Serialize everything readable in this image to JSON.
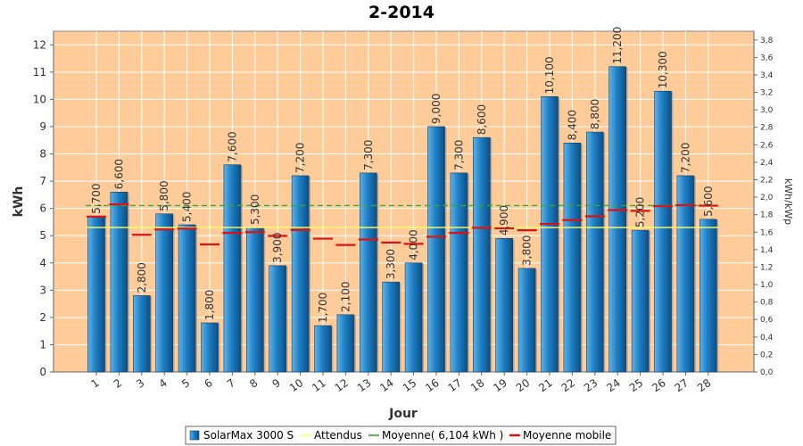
{
  "chart_data": {
    "type": "bar",
    "title": "2-2014",
    "xlabel": "Jour",
    "ylabel": "kWh",
    "ylabel_right": "kWh/kWp",
    "categories": [
      "1",
      "2",
      "3",
      "4",
      "5",
      "6",
      "7",
      "8",
      "9",
      "10",
      "11",
      "12",
      "13",
      "14",
      "15",
      "16",
      "17",
      "18",
      "19",
      "20",
      "21",
      "22",
      "23",
      "24",
      "25",
      "26",
      "27",
      "28"
    ],
    "series": [
      {
        "name": "SolarMax 3000 S",
        "kind": "bar",
        "color": "#1f7fc4",
        "values": [
          5.7,
          6.6,
          2.8,
          5.8,
          5.4,
          1.8,
          7.6,
          5.3,
          3.9,
          7.2,
          1.7,
          2.1,
          7.3,
          3.3,
          4.0,
          9.0,
          7.3,
          8.6,
          4.9,
          3.8,
          10.1,
          8.4,
          8.8,
          11.2,
          5.2,
          10.3,
          7.2,
          5.6
        ],
        "labels": [
          "5,700",
          "6,600",
          "2,800",
          "5,800",
          "5,400",
          "1,800",
          "7,600",
          "5,300",
          "3,900",
          "7,200",
          "1,700",
          "2,100",
          "7,300",
          "3,300",
          "4,000",
          "9,000",
          "7,300",
          "8,600",
          "4,900",
          "3,800",
          "10,100",
          "8,400",
          "8,800",
          "11,200",
          "5,200",
          "10,300",
          "7,200",
          "5,600"
        ]
      },
      {
        "name": "Attendus",
        "kind": "line",
        "color": "#ffff66",
        "values": [
          5.3,
          5.3,
          5.3,
          5.3,
          5.3,
          5.3,
          5.3,
          5.3,
          5.3,
          5.3,
          5.3,
          5.3,
          5.3,
          5.3,
          5.3,
          5.3,
          5.3,
          5.3,
          5.3,
          5.3,
          5.3,
          5.3,
          5.3,
          5.3,
          5.3,
          5.3,
          5.3,
          5.3
        ]
      },
      {
        "name": "Moyenne( 6,104 kWh )",
        "kind": "dashed-line",
        "color": "#33aa33",
        "values": [
          6.104,
          6.104,
          6.104,
          6.104,
          6.104,
          6.104,
          6.104,
          6.104,
          6.104,
          6.104,
          6.104,
          6.104,
          6.104,
          6.104,
          6.104,
          6.104,
          6.104,
          6.104,
          6.104,
          6.104,
          6.104,
          6.104,
          6.104,
          6.104,
          6.104,
          6.104,
          6.104,
          6.104
        ]
      },
      {
        "name": "Moyenne mobile",
        "kind": "step",
        "color": "#dd1111",
        "values": [
          5.7,
          6.15,
          5.03,
          5.23,
          5.26,
          4.68,
          5.1,
          5.13,
          4.99,
          5.21,
          4.89,
          4.66,
          4.86,
          4.75,
          4.7,
          4.96,
          5.1,
          5.29,
          5.27,
          5.2,
          5.43,
          5.57,
          5.71,
          5.94,
          5.91,
          6.08,
          6.12,
          6.1
        ]
      }
    ],
    "ylim": [
      0,
      12.5
    ],
    "yticks": [
      0,
      1,
      2,
      3,
      4,
      5,
      6,
      7,
      8,
      9,
      10,
      11,
      12
    ],
    "yticks_right": [
      "0,0",
      "0,2",
      "0,4",
      "0,6",
      "0,8",
      "1,0",
      "1,2",
      "1,4",
      "1,6",
      "1,8",
      "2,0",
      "2,2",
      "2,4",
      "2,6",
      "2,8",
      "3,0",
      "3,2",
      "3,4",
      "3,6",
      "3,8"
    ],
    "ylim_right": [
      0,
      3.9
    ],
    "background": "#ffcc99",
    "grid": true,
    "legend": "bottom"
  }
}
